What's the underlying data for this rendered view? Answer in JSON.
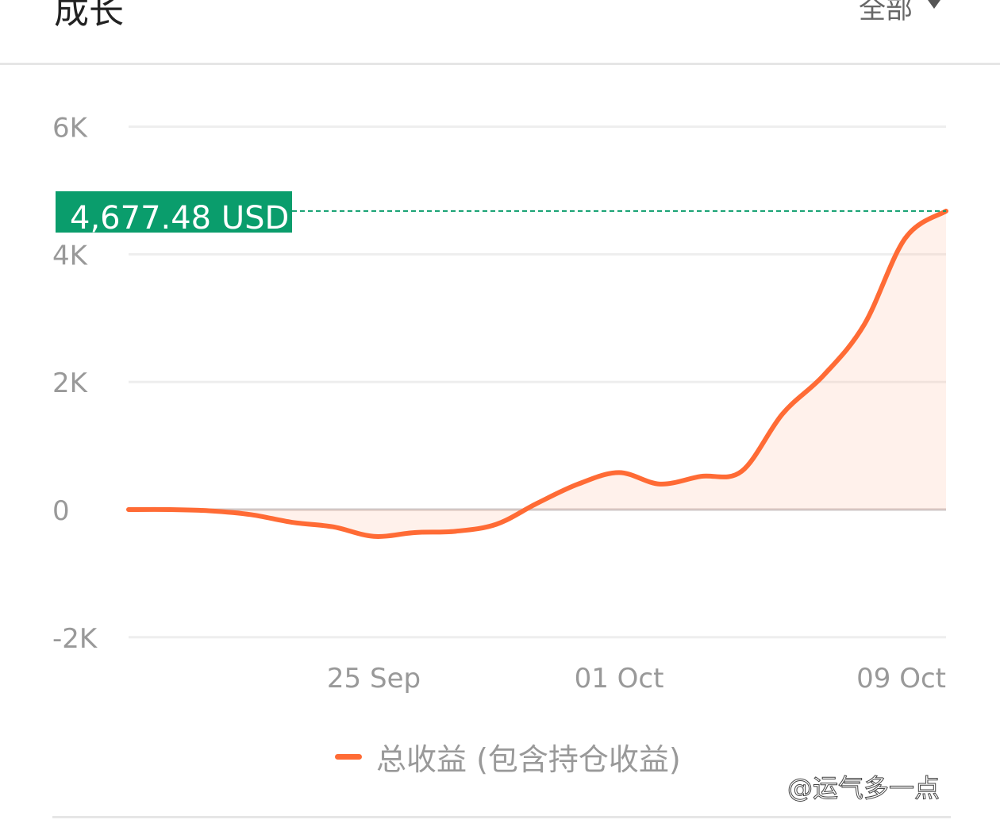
{
  "header": {
    "title": "成长",
    "filter_label": "全部",
    "filter_icon": "triangle-down-icon"
  },
  "watermark": "@运气多一点",
  "chart_data": {
    "type": "area",
    "title": "",
    "xlabel": "",
    "ylabel": "",
    "ylim": [
      -2000,
      6000
    ],
    "y_ticks": [
      {
        "value": 6000,
        "label": "6K"
      },
      {
        "value": 4000,
        "label": "4K"
      },
      {
        "value": 2000,
        "label": "2K"
      },
      {
        "value": 0,
        "label": "0"
      },
      {
        "value": -2000,
        "label": "-2K"
      }
    ],
    "x_ticks": [
      {
        "date": "25 Sep",
        "label": "25 Sep"
      },
      {
        "date": "01 Oct",
        "label": "01 Oct"
      },
      {
        "date": "09 Oct",
        "label": "09 Oct"
      }
    ],
    "grid": true,
    "legend_position": "bottom",
    "current_value_label": "4,677.48 USD",
    "current_value": 4677.48,
    "colors": {
      "line": "#ff6b35",
      "fill": "#ffb89a",
      "marker": "#0a9d6c",
      "grid": "#eeeeee",
      "zero": "#cfc7c7"
    },
    "series": [
      {
        "name": "总收益 (包含持仓收益)",
        "x": [
          "19 Sep",
          "20 Sep",
          "21 Sep",
          "22 Sep",
          "23 Sep",
          "24 Sep",
          "25 Sep",
          "26 Sep",
          "27 Sep",
          "28 Sep",
          "29 Sep",
          "30 Sep",
          "01 Oct",
          "02 Oct",
          "03 Oct",
          "04 Oct",
          "05 Oct",
          "06 Oct",
          "07 Oct",
          "08 Oct",
          "09 Oct"
        ],
        "values": [
          0,
          0,
          -20,
          -80,
          -200,
          -270,
          -420,
          -360,
          -340,
          -230,
          100,
          400,
          580,
          400,
          520,
          600,
          1500,
          2100,
          2900,
          4250,
          4677.48
        ]
      }
    ]
  }
}
